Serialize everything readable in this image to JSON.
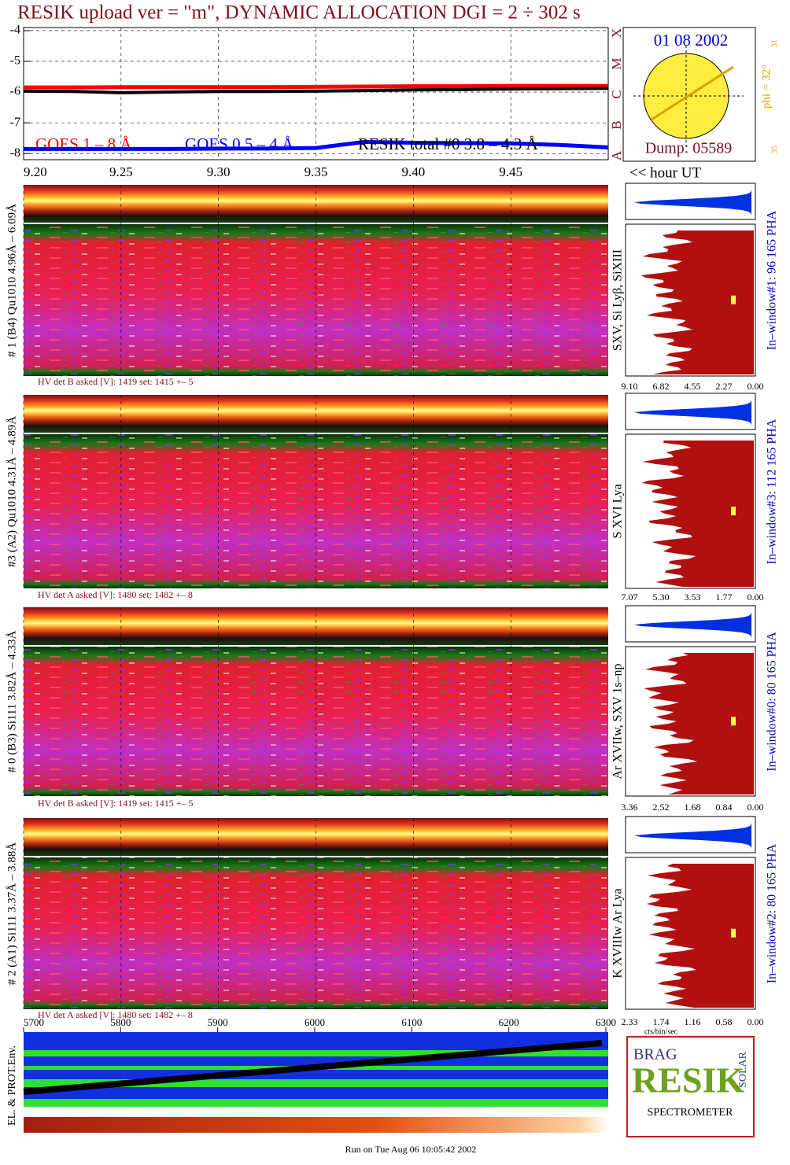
{
  "title": "RESIK upload ver = \"m\", DYNAMIC ALLOCATION  DGI =   2 ÷ 302 s",
  "chart_data": {
    "type": "line",
    "x": [
      9.2,
      9.225,
      9.25,
      9.275,
      9.3,
      9.325,
      9.35,
      9.375,
      9.4,
      9.425,
      9.45,
      9.475,
      9.5
    ],
    "series": [
      {
        "name": "GOES 1 – 8 Å",
        "color": "#ff0000",
        "values": [
          -5.85,
          -5.85,
          -5.84,
          -5.84,
          -5.84,
          -5.84,
          -5.83,
          -5.82,
          -5.81,
          -5.81,
          -5.8,
          -5.8,
          -5.8
        ]
      },
      {
        "name": "GOES 0.5 – 4 Å",
        "color": "#0000ff",
        "values": [
          -7.85,
          -7.85,
          -7.85,
          -7.85,
          -7.84,
          -7.84,
          -7.82,
          -7.62,
          -7.65,
          -7.66,
          -7.67,
          -7.72,
          -7.8
        ]
      },
      {
        "name": "RESIK total #0  3.8 – 4.3 Å",
        "color": "#000000",
        "values": [
          -5.97,
          -5.98,
          -6.02,
          -6.0,
          -5.98,
          -5.98,
          -5.97,
          -5.95,
          -5.93,
          -5.92,
          -5.9,
          -5.89,
          -5.88
        ]
      }
    ],
    "xlim": [
      9.2,
      9.5
    ],
    "ylim": [
      -8.2,
      -3.9
    ],
    "xticks": [
      {
        "value": 9.2,
        "label": "9.20"
      },
      9.25,
      {
        "value": 9.3,
        "label": "9.30"
      },
      9.35,
      {
        "value": 9.4,
        "label": "9.40"
      },
      9.45
    ],
    "yticks": [
      -4,
      -5,
      -6,
      -7,
      -8
    ],
    "xlabel": "<< hour UT",
    "grid": true
  },
  "sun": {
    "date": "01 08 2002",
    "phi": "phi = 32°",
    "dump": "Dump: 05589",
    "classes": [
      "X",
      "M",
      "C",
      "B",
      "A"
    ],
    "small": [
      "31",
      "35"
    ]
  },
  "panels": [
    {
      "label": "# 1 (B4) Qu1010 4.96Å – 6.09Å",
      "lines": "SXV, Si Lyβ, SiXIII",
      "window": "In–window#1:   96 165 PHA",
      "hv": "HV det B asked [V]:  1419 set:  1415 +–   5",
      "hist_ticks": [
        "9.10",
        "6.82",
        "4.55",
        "2.27",
        "0.00"
      ]
    },
    {
      "label": "#3 (A2) Qu1010  4.31Å – 4.89Å",
      "lines": "S XVI Lya",
      "window": "In–window#3:  112 165 PHA",
      "hv": "HV det A asked [V]:  1480 set:  1482 +–   8",
      "hist_ticks": [
        "7.07",
        "5.30",
        "3.53",
        "1.77",
        "0.00"
      ]
    },
    {
      "label": "# 0 (B3) Si111  3.82Å – 4.33Å",
      "lines": "Ar XVIIw,  SXV 1s–np",
      "window": "In–window#0:   80 165 PHA",
      "hv": "HV det B asked [V]:  1419 set:  1415 +–   5",
      "hist_ticks": [
        "3.36",
        "2.52",
        "1.68",
        "0.84",
        "0.00"
      ]
    },
    {
      "label": "# 2 (A1) Si111  3.37Å – 3.88Å",
      "lines": "K XVIIIw  Ar Lya",
      "window": "In–window#2:   80 165 PHA",
      "hv": "HV det A asked [V]:  1480 set:  1482 +–   8",
      "hist_ticks": [
        "2.33",
        "1.74",
        "1.16",
        "0.58",
        "0.00"
      ]
    }
  ],
  "hist_unit": "cts/bin/sec",
  "bottom_axis": {
    "xlim": [
      5700,
      6300
    ],
    "xticks": [
      5700,
      5800,
      5900,
      6000,
      6100,
      6200,
      6300
    ]
  },
  "env_label": "EL. & PROT.Env.",
  "logo": {
    "top": "BRAG",
    "main": "RESIK",
    "side": "SOLAR",
    "bottom": "SPECTROMETER"
  },
  "footer": "Run on Tue Aug 06 10:05:42 2002"
}
